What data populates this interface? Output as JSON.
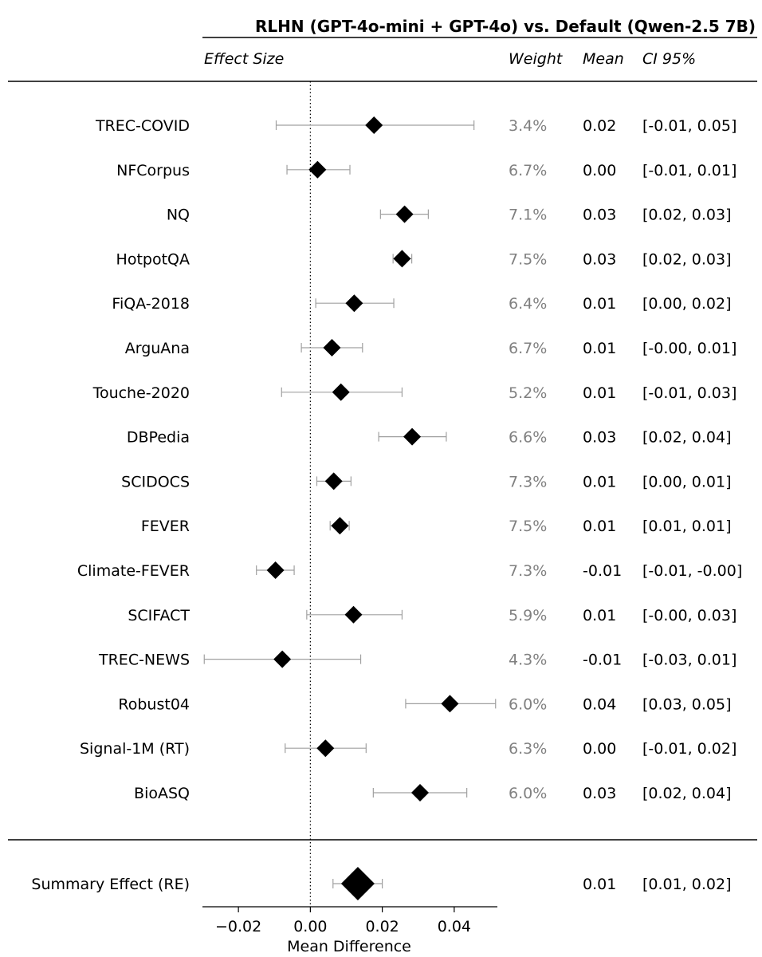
{
  "chart_data": {
    "type": "forest",
    "title": "RLHN (GPT-4o-mini + GPT-4o) vs. Default (Qwen-2.5 7B)",
    "column_headers": {
      "effect": "Effect Size",
      "weight": "Weight",
      "mean": "Mean",
      "ci": "CI 95%"
    },
    "xlabel": "Mean Difference",
    "xlim": [
      -0.03,
      0.052
    ],
    "xticks": [
      -0.02,
      0.0,
      0.02,
      0.04
    ],
    "xtick_labels": [
      "−0.02",
      "0.00",
      "0.02",
      "0.04"
    ],
    "reference_line": 0.0,
    "studies": [
      {
        "name": "TREC-COVID",
        "mean": 0.0177,
        "lo": -0.0095,
        "hi": 0.0455,
        "weight": "3.4%",
        "mean_label": "0.02",
        "ci_label": "[-0.01, 0.05]"
      },
      {
        "name": "NFCorpus",
        "mean": 0.002,
        "lo": -0.0065,
        "hi": 0.011,
        "weight": "6.7%",
        "mean_label": "0.00",
        "ci_label": "[-0.01, 0.01]"
      },
      {
        "name": "NQ",
        "mean": 0.0262,
        "lo": 0.0195,
        "hi": 0.0328,
        "weight": "7.1%",
        "mean_label": "0.03",
        "ci_label": "[0.02, 0.03]"
      },
      {
        "name": "HotpotQA",
        "mean": 0.0255,
        "lo": 0.023,
        "hi": 0.0282,
        "weight": "7.5%",
        "mean_label": "0.03",
        "ci_label": "[0.02, 0.03]"
      },
      {
        "name": "FiQA-2018",
        "mean": 0.0122,
        "lo": 0.0015,
        "hi": 0.0232,
        "weight": "6.4%",
        "mean_label": "0.01",
        "ci_label": "[0.00, 0.02]"
      },
      {
        "name": "ArguAna",
        "mean": 0.006,
        "lo": -0.0025,
        "hi": 0.0145,
        "weight": "6.7%",
        "mean_label": "0.01",
        "ci_label": "[-0.00, 0.01]"
      },
      {
        "name": "Touche-2020",
        "mean": 0.0085,
        "lo": -0.008,
        "hi": 0.0255,
        "weight": "5.2%",
        "mean_label": "0.01",
        "ci_label": "[-0.01, 0.03]"
      },
      {
        "name": "DBPedia",
        "mean": 0.0283,
        "lo": 0.019,
        "hi": 0.0378,
        "weight": "6.6%",
        "mean_label": "0.03",
        "ci_label": "[0.02, 0.04]"
      },
      {
        "name": "SCIDOCS",
        "mean": 0.0065,
        "lo": 0.0018,
        "hi": 0.0113,
        "weight": "7.3%",
        "mean_label": "0.01",
        "ci_label": "[0.00, 0.01]"
      },
      {
        "name": "FEVER",
        "mean": 0.0082,
        "lo": 0.0055,
        "hi": 0.0108,
        "weight": "7.5%",
        "mean_label": "0.01",
        "ci_label": "[0.01, 0.01]"
      },
      {
        "name": "Climate-FEVER",
        "mean": -0.0097,
        "lo": -0.015,
        "hi": -0.0045,
        "weight": "7.3%",
        "mean_label": "-0.01",
        "ci_label": "[-0.01, -0.00]"
      },
      {
        "name": "SCIFACT",
        "mean": 0.012,
        "lo": -0.001,
        "hi": 0.0255,
        "weight": "5.9%",
        "mean_label": "0.01",
        "ci_label": "[-0.00, 0.03]"
      },
      {
        "name": "TREC-NEWS",
        "mean": -0.0078,
        "lo": -0.0295,
        "hi": 0.014,
        "weight": "4.3%",
        "mean_label": "-0.01",
        "ci_label": "[-0.03, 0.01]"
      },
      {
        "name": "Robust04",
        "mean": 0.0388,
        "lo": 0.0265,
        "hi": 0.0515,
        "weight": "6.0%",
        "mean_label": "0.04",
        "ci_label": "[0.03, 0.05]"
      },
      {
        "name": "Signal-1M (RT)",
        "mean": 0.0042,
        "lo": -0.007,
        "hi": 0.0155,
        "weight": "6.3%",
        "mean_label": "0.00",
        "ci_label": "[-0.01, 0.02]"
      },
      {
        "name": "BioASQ",
        "mean": 0.0305,
        "lo": 0.0175,
        "hi": 0.0435,
        "weight": "6.0%",
        "mean_label": "0.03",
        "ci_label": "[0.02, 0.04]"
      }
    ],
    "summary": {
      "name": "Summary Effect (RE)",
      "mean": 0.0132,
      "lo": 0.0063,
      "hi": 0.02,
      "mean_label": "0.01",
      "ci_label": "[0.01, 0.02]"
    },
    "colors": {
      "marker": "#000000",
      "ci_line": "#a0a0a0",
      "weight_text": "#808080",
      "rule": "#000000"
    }
  }
}
